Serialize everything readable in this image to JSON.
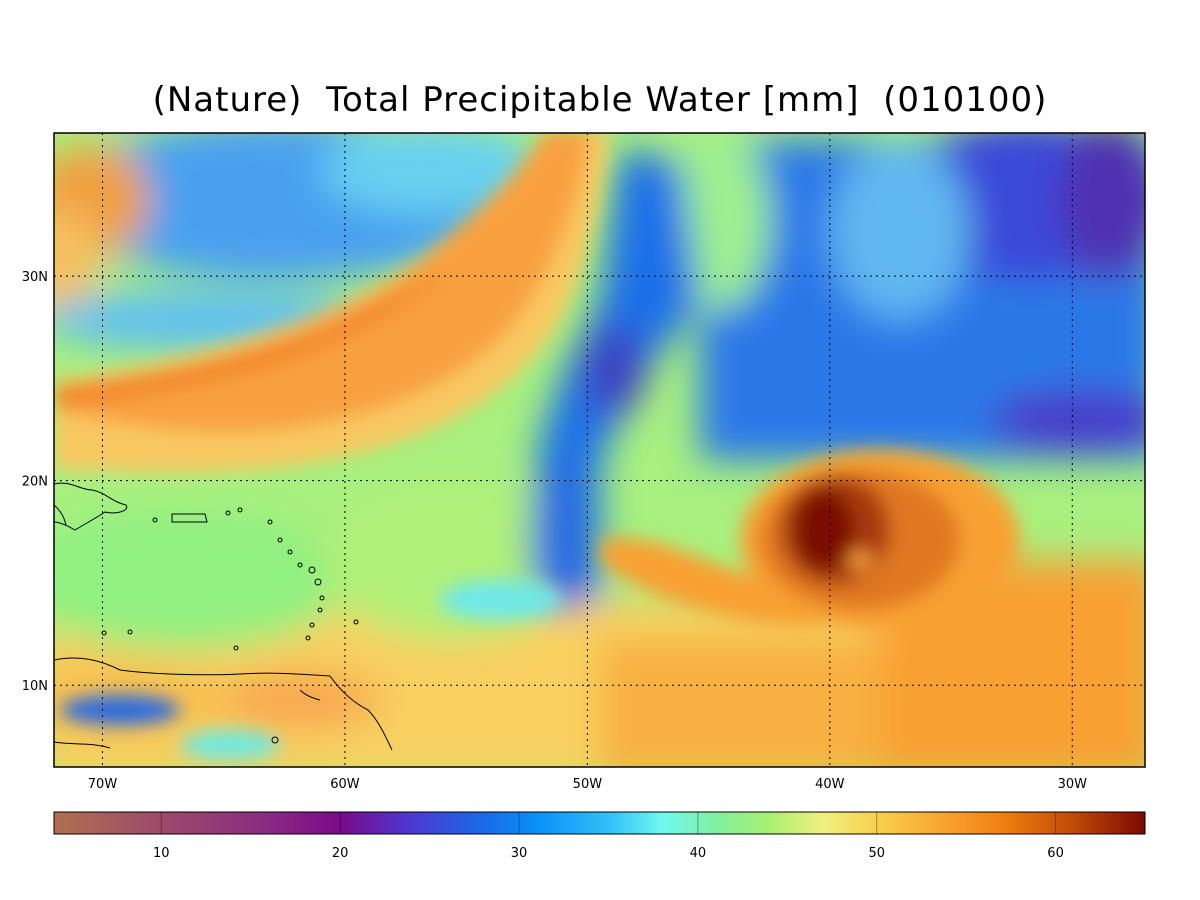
{
  "title": "(Nature)  Total Precipitable Water [mm]  (010100)",
  "map": {
    "lon_range": [
      -72,
      -27
    ],
    "lat_range": [
      6,
      37
    ],
    "lon_ticks": [
      {
        "value": -70,
        "label": "70W"
      },
      {
        "value": -60,
        "label": "60W"
      },
      {
        "value": -50,
        "label": "50W"
      },
      {
        "value": -40,
        "label": "40W"
      },
      {
        "value": -30,
        "label": "30W"
      }
    ],
    "lat_ticks": [
      {
        "value": 30,
        "label": "30N"
      },
      {
        "value": 20,
        "label": "20N"
      },
      {
        "value": 10,
        "label": "10N"
      }
    ],
    "gridlines": true
  },
  "colorbar": {
    "range": [
      4,
      65
    ],
    "ticks": [
      {
        "value": 10,
        "label": "10"
      },
      {
        "value": 20,
        "label": "20"
      },
      {
        "value": 30,
        "label": "30"
      },
      {
        "value": 40,
        "label": "40"
      },
      {
        "value": 50,
        "label": "50"
      },
      {
        "value": 60,
        "label": "60"
      }
    ],
    "stops": [
      {
        "value": 4,
        "color": "#b07050"
      },
      {
        "value": 10,
        "color": "#9c4a6a"
      },
      {
        "value": 16,
        "color": "#8a2a82"
      },
      {
        "value": 20,
        "color": "#7a0a8a"
      },
      {
        "value": 24,
        "color": "#4a3ad0"
      },
      {
        "value": 28,
        "color": "#1a6ae8"
      },
      {
        "value": 31,
        "color": "#0a90f8"
      },
      {
        "value": 35,
        "color": "#30c0f8"
      },
      {
        "value": 38,
        "color": "#70f8f0"
      },
      {
        "value": 41,
        "color": "#80f0a0"
      },
      {
        "value": 44,
        "color": "#a8f070"
      },
      {
        "value": 47,
        "color": "#f0f080"
      },
      {
        "value": 50,
        "color": "#f8d050"
      },
      {
        "value": 54,
        "color": "#f8a030"
      },
      {
        "value": 57,
        "color": "#f08010"
      },
      {
        "value": 61,
        "color": "#c04a08"
      },
      {
        "value": 65,
        "color": "#7a0a00"
      }
    ]
  }
}
